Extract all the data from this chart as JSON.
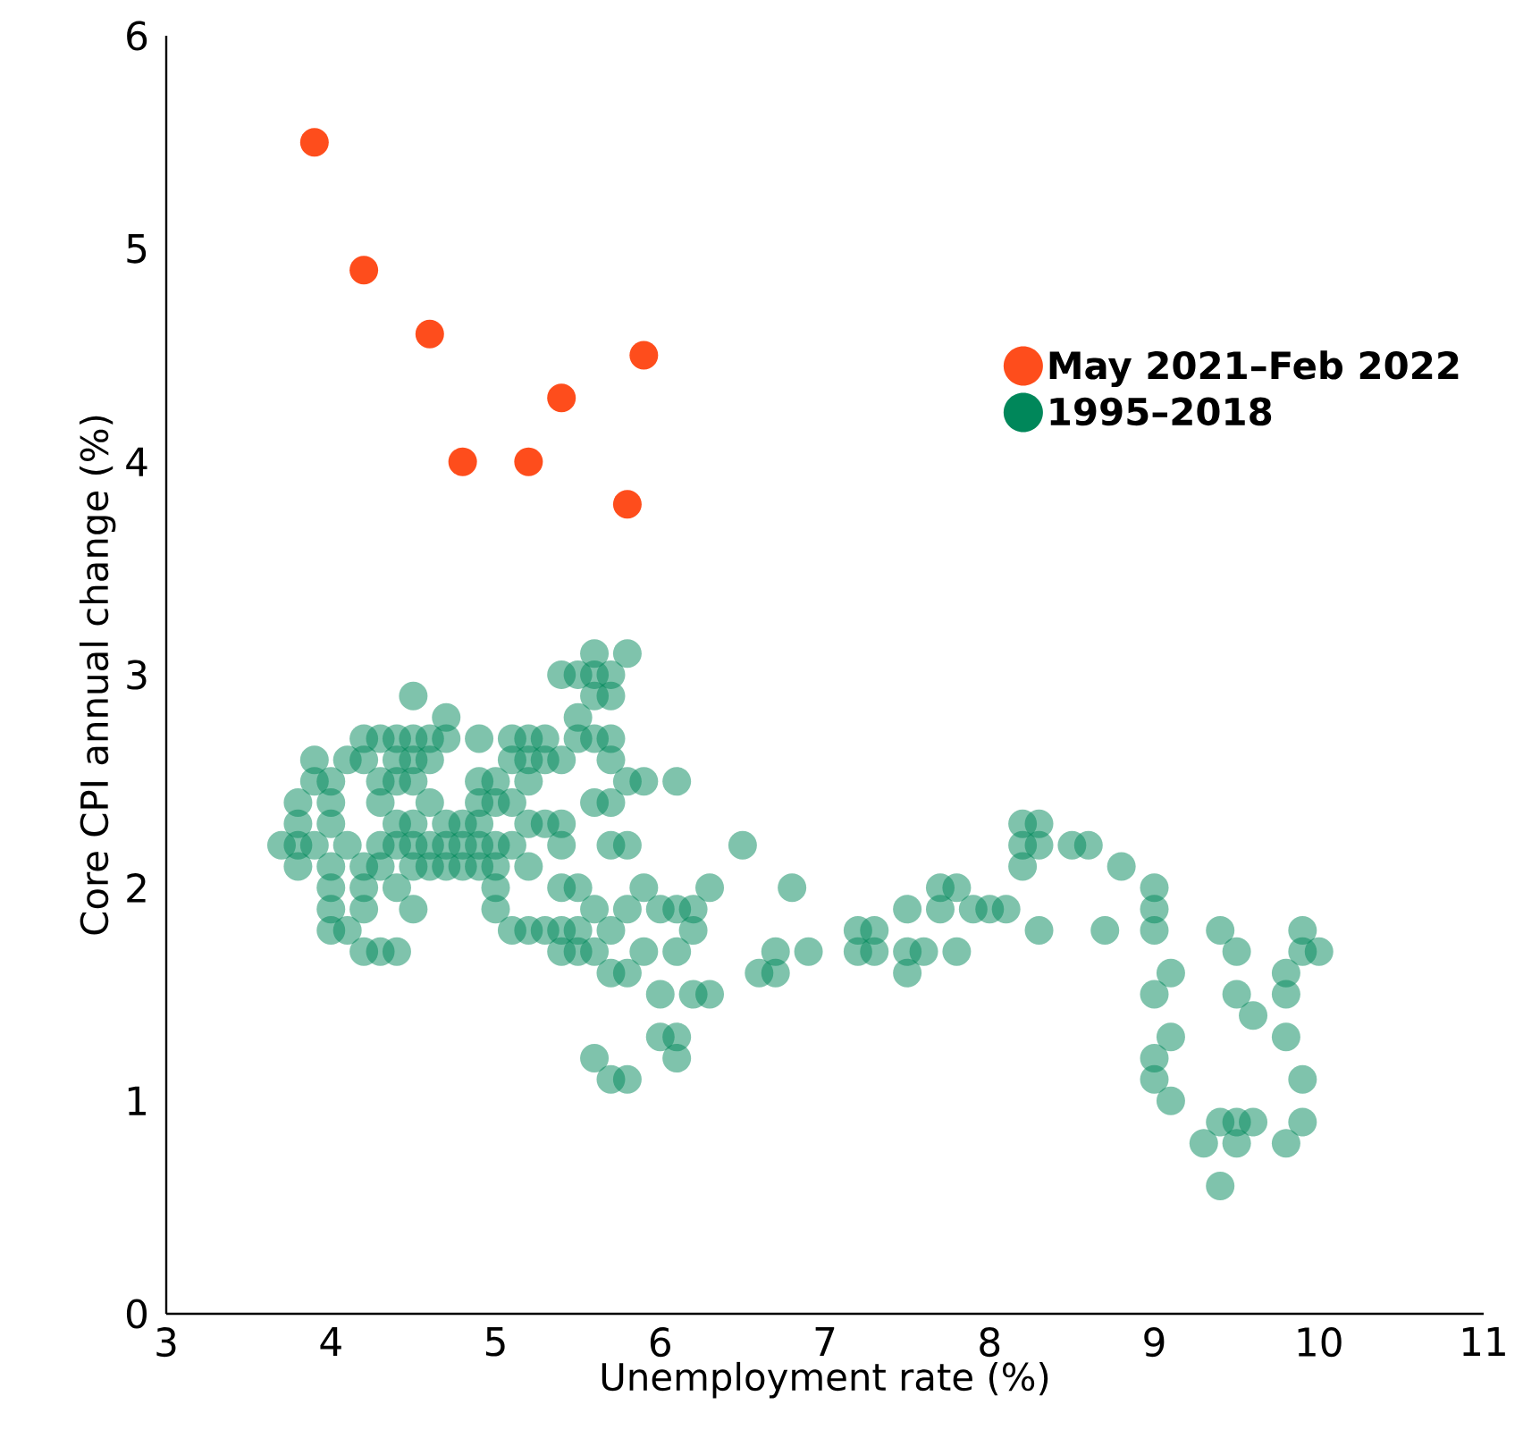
{
  "chart_data": {
    "type": "scatter",
    "xlabel": "Unemployment rate (%)",
    "ylabel": "Core CPI annual change (%)",
    "xlim": [
      3,
      11
    ],
    "xticks": [
      3,
      4,
      5,
      6,
      7,
      8,
      9,
      10,
      11
    ],
    "ylim": [
      0,
      6
    ],
    "yticks": [
      0,
      1,
      2,
      3,
      4,
      5,
      6
    ],
    "legend": "top right",
    "marker": "circle",
    "grid": false,
    "series": [
      {
        "name": "May 2021–Feb 2022",
        "color": "#fe4d1c",
        "x": [
          3.9,
          4.2,
          4.6,
          4.8,
          5.2,
          5.4,
          5.8,
          5.9
        ],
        "values": [
          5.5,
          4.9,
          4.6,
          4.0,
          4.0,
          4.3,
          3.8,
          4.5
        ]
      },
      {
        "name": "1995–2018",
        "color": "#00875a",
        "x": [
          3.7,
          3.8,
          3.8,
          3.8,
          3.8,
          3.9,
          3.9,
          3.9,
          4.0,
          4.0,
          4.0,
          4.0,
          4.0,
          4.0,
          4.0,
          4.1,
          4.1,
          4.1,
          4.2,
          4.2,
          4.2,
          4.2,
          4.2,
          4.2,
          4.3,
          4.3,
          4.3,
          4.3,
          4.3,
          4.3,
          4.4,
          4.4,
          4.4,
          4.4,
          4.4,
          4.4,
          4.4,
          4.5,
          4.5,
          4.5,
          4.5,
          4.5,
          4.5,
          4.5,
          4.5,
          4.6,
          4.6,
          4.6,
          4.6,
          4.6,
          4.7,
          4.7,
          4.7,
          4.7,
          4.7,
          4.8,
          4.8,
          4.8,
          4.9,
          4.9,
          4.9,
          4.9,
          4.9,
          4.9,
          5.0,
          5.0,
          5.0,
          5.0,
          5.0,
          5.0,
          5.1,
          5.1,
          5.1,
          5.1,
          5.1,
          5.2,
          5.2,
          5.2,
          5.2,
          5.2,
          5.2,
          5.3,
          5.3,
          5.3,
          5.3,
          5.4,
          5.4,
          5.4,
          5.4,
          5.4,
          5.4,
          5.4,
          5.5,
          5.5,
          5.5,
          5.5,
          5.5,
          5.5,
          5.6,
          5.6,
          5.6,
          5.6,
          5.6,
          5.6,
          5.6,
          5.6,
          5.7,
          5.7,
          5.7,
          5.7,
          5.7,
          5.7,
          5.7,
          5.7,
          5.7,
          5.8,
          5.8,
          5.8,
          5.8,
          5.8,
          5.8,
          5.9,
          5.9,
          5.9,
          6.0,
          6.0,
          6.0,
          6.1,
          6.1,
          6.1,
          6.1,
          6.1,
          6.2,
          6.2,
          6.2,
          6.3,
          6.3,
          6.5,
          6.6,
          6.7,
          6.7,
          6.8,
          6.9,
          7.2,
          7.2,
          7.3,
          7.3,
          7.5,
          7.5,
          7.5,
          7.6,
          7.7,
          7.7,
          7.8,
          7.8,
          7.9,
          8.0,
          8.1,
          8.2,
          8.2,
          8.2,
          8.3,
          8.3,
          8.3,
          8.5,
          8.6,
          8.7,
          8.8,
          9.0,
          9.0,
          9.0,
          9.0,
          9.0,
          9.0,
          9.1,
          9.1,
          9.1,
          9.3,
          9.4,
          9.4,
          9.4,
          9.5,
          9.5,
          9.5,
          9.5,
          9.6,
          9.6,
          9.8,
          9.8,
          9.8,
          9.8,
          9.9,
          9.9,
          9.9,
          9.9,
          10.0
        ],
        "values": [
          2.2,
          2.4,
          2.3,
          2.2,
          2.1,
          2.6,
          2.5,
          2.2,
          2.5,
          2.4,
          2.3,
          2.1,
          2.0,
          1.9,
          1.8,
          2.6,
          2.2,
          1.8,
          2.7,
          2.6,
          2.1,
          2.0,
          1.9,
          1.7,
          2.7,
          2.5,
          2.4,
          2.2,
          2.1,
          1.7,
          2.7,
          2.6,
          2.5,
          2.3,
          2.2,
          2.0,
          1.7,
          2.9,
          2.7,
          2.6,
          2.5,
          2.3,
          2.2,
          2.1,
          1.9,
          2.7,
          2.6,
          2.4,
          2.2,
          2.1,
          2.8,
          2.7,
          2.3,
          2.2,
          2.1,
          2.2,
          2.3,
          2.1,
          2.7,
          2.5,
          2.4,
          2.3,
          2.2,
          2.1,
          2.5,
          2.4,
          2.2,
          2.1,
          2.0,
          1.9,
          2.7,
          2.6,
          2.4,
          2.2,
          1.8,
          2.7,
          2.6,
          2.5,
          2.3,
          2.1,
          1.8,
          2.7,
          2.6,
          2.3,
          1.8,
          3.0,
          2.6,
          2.3,
          2.2,
          2.0,
          1.8,
          1.7,
          3.0,
          2.8,
          2.7,
          2.0,
          1.8,
          1.7,
          3.1,
          3.0,
          2.9,
          2.7,
          2.4,
          1.9,
          1.7,
          1.2,
          3.0,
          2.9,
          2.7,
          2.6,
          2.4,
          2.2,
          1.8,
          1.6,
          1.1,
          3.1,
          2.5,
          2.2,
          1.9,
          1.6,
          1.1,
          2.5,
          2.0,
          1.7,
          1.9,
          1.5,
          1.3,
          2.5,
          1.9,
          1.7,
          1.3,
          1.2,
          1.9,
          1.8,
          1.5,
          2.0,
          1.5,
          2.2,
          1.6,
          1.7,
          1.6,
          2.0,
          1.7,
          1.8,
          1.7,
          1.8,
          1.7,
          1.9,
          1.7,
          1.6,
          1.7,
          2.0,
          1.9,
          2.0,
          1.7,
          1.9,
          1.9,
          1.9,
          2.3,
          2.2,
          2.1,
          2.3,
          2.2,
          1.8,
          2.2,
          2.2,
          1.8,
          2.1,
          2.0,
          1.9,
          1.8,
          1.5,
          1.2,
          1.1,
          1.6,
          1.3,
          1.0,
          0.8,
          1.8,
          0.9,
          0.6,
          1.7,
          1.5,
          0.9,
          0.8,
          1.4,
          0.9,
          1.6,
          1.5,
          1.3,
          0.8,
          1.8,
          1.7,
          1.1,
          0.9,
          1.7
        ]
      }
    ]
  }
}
